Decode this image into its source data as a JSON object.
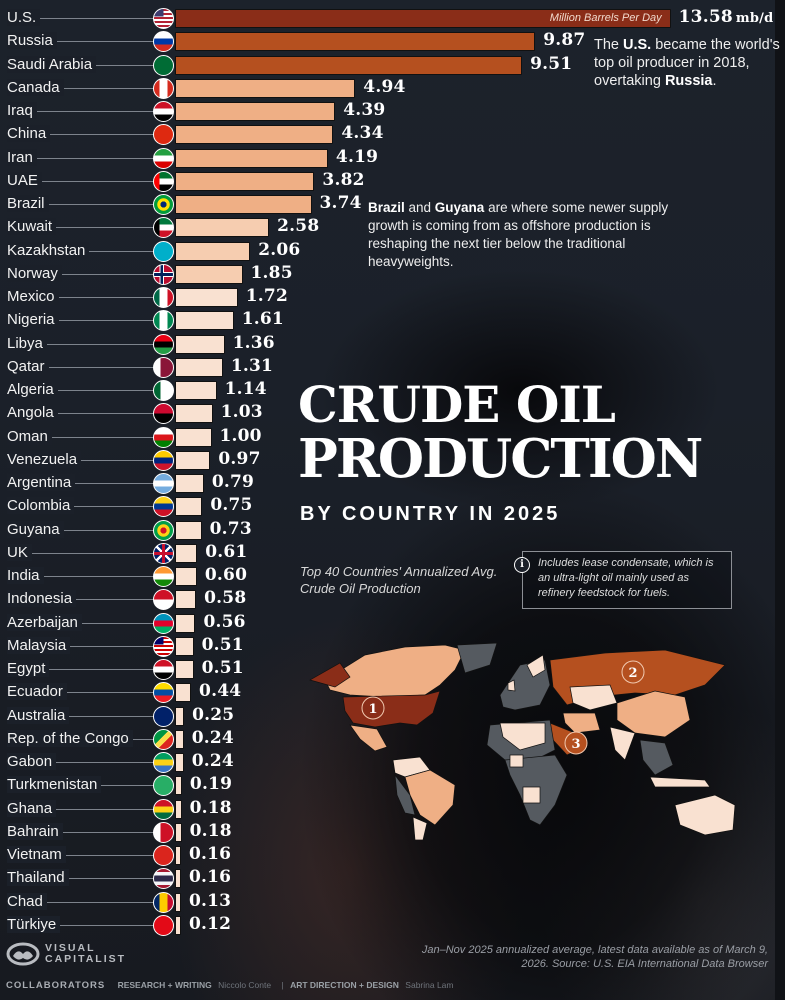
{
  "title": {
    "line1": "CRUDE OIL",
    "line2": "PRODUCTION",
    "subtitle": "BY COUNTRY IN 2025"
  },
  "description": "Top 40 Countries' Annualized Avg. Crude Oil Production",
  "info_note": "Includes lease condensate, which is an ultra-light oil mainly used as refinery feedstock for fuels.",
  "unit_label": "Million Barrels Per Day",
  "unit_suffix": "mb/d",
  "annotations": {
    "us_note": {
      "parts": [
        "The ",
        "U.S.",
        " became the world's top oil producer in 2018, overtaking ",
        "Russia",
        "."
      ]
    },
    "brazil_note": {
      "parts": [
        "Brazil",
        " and ",
        "Guyana",
        " are where some newer supply growth is coming from as offshore production is reshaping the next tier below the traditional heavyweights."
      ]
    }
  },
  "colors": {
    "tier1": "#8a2d18",
    "tier2": "#b5501f",
    "tier3": "#efaf85",
    "tier4": "#f6cdb0",
    "tier5": "#f9e1d1",
    "no_data": "#555a60",
    "background": "#1b2029"
  },
  "map": {
    "markers": [
      "1",
      "2",
      "3"
    ]
  },
  "chart_data": {
    "type": "bar",
    "orientation": "horizontal",
    "title": "Crude Oil Production by Country in 2025",
    "subtitle": "Top 40 Countries' Annualized Avg. Crude Oil Production",
    "xlabel": "Million Barrels Per Day",
    "unit": "mb/d",
    "categories": [
      "U.S.",
      "Russia",
      "Saudi Arabia",
      "Canada",
      "Iraq",
      "China",
      "Iran",
      "UAE",
      "Brazil",
      "Kuwait",
      "Kazakhstan",
      "Norway",
      "Mexico",
      "Nigeria",
      "Libya",
      "Qatar",
      "Algeria",
      "Angola",
      "Oman",
      "Venezuela",
      "Argentina",
      "Colombia",
      "Guyana",
      "UK",
      "India",
      "Indonesia",
      "Azerbaijan",
      "Malaysia",
      "Egypt",
      "Ecuador",
      "Australia",
      "Rep. of the Congo",
      "Gabon",
      "Turkmenistan",
      "Ghana",
      "Bahrain",
      "Vietnam",
      "Thailand",
      "Chad",
      "Türkiye"
    ],
    "values": [
      13.58,
      9.87,
      9.51,
      4.94,
      4.39,
      4.34,
      4.19,
      3.82,
      3.74,
      2.58,
      2.06,
      1.85,
      1.72,
      1.61,
      1.36,
      1.31,
      1.14,
      1.03,
      1.0,
      0.97,
      0.79,
      0.75,
      0.73,
      0.61,
      0.6,
      0.58,
      0.56,
      0.51,
      0.51,
      0.44,
      0.25,
      0.24,
      0.24,
      0.19,
      0.18,
      0.18,
      0.16,
      0.16,
      0.13,
      0.12
    ],
    "value_labels": [
      "13.58",
      "9.87",
      "9.51",
      "4.94",
      "4.39",
      "4.34",
      "4.19",
      "3.82",
      "3.74",
      "2.58",
      "2.06",
      "1.85",
      "1.72",
      "1.61",
      "1.36",
      "1.31",
      "1.14",
      "1.03",
      "1.00",
      "0.97",
      "0.79",
      "0.75",
      "0.73",
      "0.61",
      "0.60",
      "0.58",
      "0.56",
      "0.51",
      "0.51",
      "0.44",
      "0.25",
      "0.24",
      "0.24",
      "0.19",
      "0.18",
      "0.18",
      "0.16",
      "0.16",
      "0.13",
      "0.12"
    ],
    "grid": false,
    "legend": "none"
  },
  "rows": [
    {
      "country": "U.S.",
      "value": "13.58",
      "v": 13.58,
      "flag": [
        "#b22234",
        "#ffffff",
        "#3c3b6e"
      ],
      "ftype": "us"
    },
    {
      "country": "Russia",
      "value": "9.87",
      "v": 9.87,
      "flag": [
        "#ffffff",
        "#0039a6",
        "#d52b1e"
      ],
      "ftype": "h3"
    },
    {
      "country": "Saudi Arabia",
      "value": "9.51",
      "v": 9.51,
      "flag": [
        "#006c35"
      ],
      "ftype": "solid"
    },
    {
      "country": "Canada",
      "value": "4.94",
      "v": 4.94,
      "flag": [
        "#d52b1e",
        "#ffffff",
        "#d52b1e"
      ],
      "ftype": "v3"
    },
    {
      "country": "Iraq",
      "value": "4.39",
      "v": 4.39,
      "flag": [
        "#ce1126",
        "#ffffff",
        "#000000"
      ],
      "ftype": "h3"
    },
    {
      "country": "China",
      "value": "4.34",
      "v": 4.34,
      "flag": [
        "#de2910"
      ],
      "ftype": "solid"
    },
    {
      "country": "Iran",
      "value": "4.19",
      "v": 4.19,
      "flag": [
        "#239f40",
        "#ffffff",
        "#da0000"
      ],
      "ftype": "h3"
    },
    {
      "country": "UAE",
      "value": "3.82",
      "v": 3.82,
      "flag": [
        "#00732f",
        "#ffffff",
        "#000000",
        "#ff0000"
      ],
      "ftype": "uae"
    },
    {
      "country": "Brazil",
      "value": "3.74",
      "v": 3.74,
      "flag": [
        "#009c3b",
        "#ffdf00",
        "#002776"
      ],
      "ftype": "brazil"
    },
    {
      "country": "Kuwait",
      "value": "2.58",
      "v": 2.58,
      "flag": [
        "#007a3d",
        "#ffffff",
        "#ce1126",
        "#000000"
      ],
      "ftype": "uae"
    },
    {
      "country": "Kazakhstan",
      "value": "2.06",
      "v": 2.06,
      "flag": [
        "#00afca"
      ],
      "ftype": "solid"
    },
    {
      "country": "Norway",
      "value": "1.85",
      "v": 1.85,
      "flag": [
        "#ba0c2f",
        "#ffffff",
        "#00205b"
      ],
      "ftype": "nordic"
    },
    {
      "country": "Mexico",
      "value": "1.72",
      "v": 1.72,
      "flag": [
        "#006847",
        "#ffffff",
        "#ce1126"
      ],
      "ftype": "v3"
    },
    {
      "country": "Nigeria",
      "value": "1.61",
      "v": 1.61,
      "flag": [
        "#008751",
        "#ffffff",
        "#008751"
      ],
      "ftype": "v3"
    },
    {
      "country": "Libya",
      "value": "1.36",
      "v": 1.36,
      "flag": [
        "#e70013",
        "#000000",
        "#239e46"
      ],
      "ftype": "h3"
    },
    {
      "country": "Qatar",
      "value": "1.31",
      "v": 1.31,
      "flag": [
        "#ffffff",
        "#8a1538"
      ],
      "ftype": "v2"
    },
    {
      "country": "Algeria",
      "value": "1.14",
      "v": 1.14,
      "flag": [
        "#006633",
        "#ffffff"
      ],
      "ftype": "v2"
    },
    {
      "country": "Angola",
      "value": "1.03",
      "v": 1.03,
      "flag": [
        "#cc092f",
        "#000000"
      ],
      "ftype": "h2"
    },
    {
      "country": "Oman",
      "value": "1.00",
      "v": 1.0,
      "flag": [
        "#ffffff",
        "#db161b",
        "#008000"
      ],
      "ftype": "h3"
    },
    {
      "country": "Venezuela",
      "value": "0.97",
      "v": 0.97,
      "flag": [
        "#ffcc00",
        "#00247d",
        "#cf142b"
      ],
      "ftype": "h3"
    },
    {
      "country": "Argentina",
      "value": "0.79",
      "v": 0.79,
      "flag": [
        "#74acdf",
        "#ffffff",
        "#74acdf"
      ],
      "ftype": "h3"
    },
    {
      "country": "Colombia",
      "value": "0.75",
      "v": 0.75,
      "flag": [
        "#fcd116",
        "#003893",
        "#ce1126"
      ],
      "ftype": "h3"
    },
    {
      "country": "Guyana",
      "value": "0.73",
      "v": 0.73,
      "flag": [
        "#009e49",
        "#fcd116",
        "#ce1126"
      ],
      "ftype": "brazil"
    },
    {
      "country": "UK",
      "value": "0.61",
      "v": 0.61,
      "flag": [
        "#012169",
        "#ffffff",
        "#c8102e"
      ],
      "ftype": "uk"
    },
    {
      "country": "India",
      "value": "0.60",
      "v": 0.6,
      "flag": [
        "#ff9933",
        "#ffffff",
        "#138808"
      ],
      "ftype": "h3"
    },
    {
      "country": "Indonesia",
      "value": "0.58",
      "v": 0.58,
      "flag": [
        "#ce1126",
        "#ffffff"
      ],
      "ftype": "h2"
    },
    {
      "country": "Azerbaijan",
      "value": "0.56",
      "v": 0.56,
      "flag": [
        "#0092bc",
        "#e4002b",
        "#00af66"
      ],
      "ftype": "h3"
    },
    {
      "country": "Malaysia",
      "value": "0.51",
      "v": 0.51,
      "flag": [
        "#cc0001",
        "#ffffff",
        "#010066"
      ],
      "ftype": "us"
    },
    {
      "country": "Egypt",
      "value": "0.51",
      "v": 0.51,
      "flag": [
        "#ce1126",
        "#ffffff",
        "#000000"
      ],
      "ftype": "h3"
    },
    {
      "country": "Ecuador",
      "value": "0.44",
      "v": 0.44,
      "flag": [
        "#ffdd00",
        "#034ea2",
        "#ed1c24"
      ],
      "ftype": "h3"
    },
    {
      "country": "Australia",
      "value": "0.25",
      "v": 0.25,
      "flag": [
        "#012169"
      ],
      "ftype": "solid"
    },
    {
      "country": "Rep. of the Congo",
      "value": "0.24",
      "v": 0.24,
      "flag": [
        "#009543",
        "#fbde4a",
        "#dc241f"
      ],
      "ftype": "diag"
    },
    {
      "country": "Gabon",
      "value": "0.24",
      "v": 0.24,
      "flag": [
        "#009e60",
        "#fcd116",
        "#3a75c4"
      ],
      "ftype": "h3"
    },
    {
      "country": "Turkmenistan",
      "value": "0.19",
      "v": 0.19,
      "flag": [
        "#28ae66"
      ],
      "ftype": "solid"
    },
    {
      "country": "Ghana",
      "value": "0.18",
      "v": 0.18,
      "flag": [
        "#ce1126",
        "#fcd116",
        "#006b3f"
      ],
      "ftype": "h3"
    },
    {
      "country": "Bahrain",
      "value": "0.18",
      "v": 0.18,
      "flag": [
        "#ffffff",
        "#ce1126"
      ],
      "ftype": "v2"
    },
    {
      "country": "Vietnam",
      "value": "0.16",
      "v": 0.16,
      "flag": [
        "#da251d"
      ],
      "ftype": "solid"
    },
    {
      "country": "Thailand",
      "value": "0.16",
      "v": 0.16,
      "flag": [
        "#a51931",
        "#f4f5f8",
        "#2d2a4a"
      ],
      "ftype": "thai"
    },
    {
      "country": "Chad",
      "value": "0.13",
      "v": 0.13,
      "flag": [
        "#002664",
        "#fecb00",
        "#c60c30"
      ],
      "ftype": "v3"
    },
    {
      "country": "Türkiye",
      "value": "0.12",
      "v": 0.12,
      "flag": [
        "#e30a17"
      ],
      "ftype": "solid"
    }
  ],
  "footer": {
    "logo_line1": "VISUAL",
    "logo_line2": "CAPITALIST",
    "collaborators": "COLLABORATORS",
    "research_role": "RESEARCH + WRITING",
    "research_name": "Niccolo Conte",
    "design_role": "ART DIRECTION + DESIGN",
    "design_name": "Sabrina Lam",
    "source": "Jan–Nov 2025 annualized average, latest data available as of March 9, 2026. Source: U.S. EIA International Data Browser"
  }
}
